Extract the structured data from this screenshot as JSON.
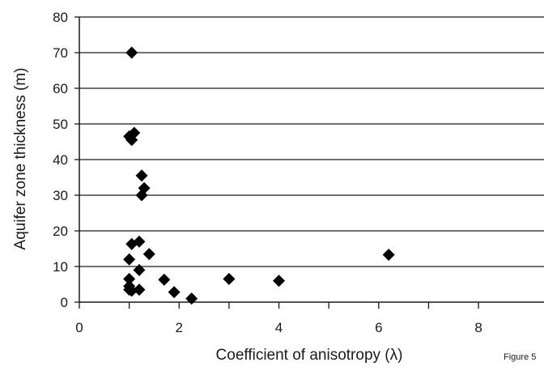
{
  "chart_data": {
    "type": "scatter",
    "title": "",
    "xlabel": "Coefficient of anisotropy (λ)",
    "ylabel": "Aquifer zone thickness (m)",
    "xlim": [
      0,
      8
    ],
    "ylim": [
      0,
      80
    ],
    "x_ticks": [
      "0",
      "2",
      "4",
      "6",
      "8"
    ],
    "y_ticks": [
      "0",
      "10",
      "20",
      "30",
      "40",
      "50",
      "60",
      "70",
      "80"
    ],
    "grid": "horizontal",
    "marker": "diamond",
    "colors": {
      "marker": "#000000",
      "grid": "#1a1a1a",
      "axis": "#1a1a1a"
    },
    "points": [
      {
        "x": 1.05,
        "y": 70
      },
      {
        "x": 1.1,
        "y": 47.5
      },
      {
        "x": 1.0,
        "y": 46.5
      },
      {
        "x": 1.05,
        "y": 45.5
      },
      {
        "x": 1.25,
        "y": 35.5
      },
      {
        "x": 1.3,
        "y": 32
      },
      {
        "x": 1.25,
        "y": 30
      },
      {
        "x": 1.2,
        "y": 17
      },
      {
        "x": 1.05,
        "y": 16.3
      },
      {
        "x": 1.4,
        "y": 13.5
      },
      {
        "x": 1.0,
        "y": 12
      },
      {
        "x": 1.2,
        "y": 9
      },
      {
        "x": 1.0,
        "y": 6.5
      },
      {
        "x": 1.7,
        "y": 6.3
      },
      {
        "x": 3.0,
        "y": 6.5
      },
      {
        "x": 4.0,
        "y": 6
      },
      {
        "x": 6.2,
        "y": 13.3
      },
      {
        "x": 1.0,
        "y": 4.5
      },
      {
        "x": 1.0,
        "y": 3.5
      },
      {
        "x": 1.05,
        "y": 3.2
      },
      {
        "x": 1.2,
        "y": 3.5
      },
      {
        "x": 1.9,
        "y": 2.8
      },
      {
        "x": 2.25,
        "y": 1
      }
    ]
  },
  "figure_label": "Figure 5"
}
